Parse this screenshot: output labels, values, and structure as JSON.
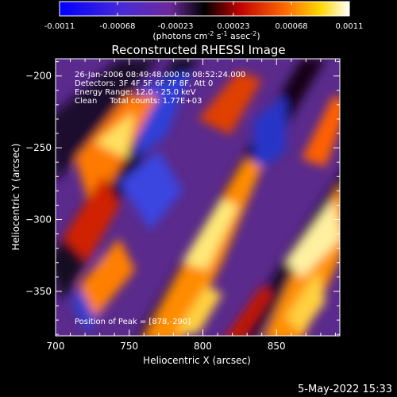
{
  "colorbar": {
    "ticks": [
      "-0.0011",
      "-0.00068",
      "-0.00023",
      "0.00023",
      "0.00068",
      "0.0011"
    ],
    "unit_main": "(photons cm",
    "unit_exp1": "-2",
    "unit_mid": " s",
    "unit_exp2": "-1",
    "unit_end": " asec",
    "unit_exp3": "-2",
    "unit_close": ")"
  },
  "chart_data": {
    "type": "heatmap",
    "title": "Reconstructed RHESSI Image",
    "xlabel": "Heliocentric X (arcsec)",
    "ylabel": "Heliocentric Y (arcsec)",
    "xlim": [
      700,
      893
    ],
    "ylim": [
      -381,
      -188
    ],
    "xticks": [
      700,
      750,
      800,
      850
    ],
    "yticks": [
      -200,
      -250,
      -300,
      -350
    ],
    "color_range": [
      -0.0011,
      0.0011
    ],
    "colormap": "blue-purple-black-red-orange-yellow-white",
    "annotations": [
      "26-Jan-2006 08:49:48.000 to 08:52:24.000",
      "Detectors: 3F 4F 5F 6F 7F 8F, Att 0",
      "Energy Range: 12.0 - 25.0 keV",
      "Clean     Total counts: 1.77E+03"
    ],
    "peak_label": "Position of Peak = [878,-290]"
  },
  "footer": {
    "date": "5-May-2022 15:33"
  }
}
